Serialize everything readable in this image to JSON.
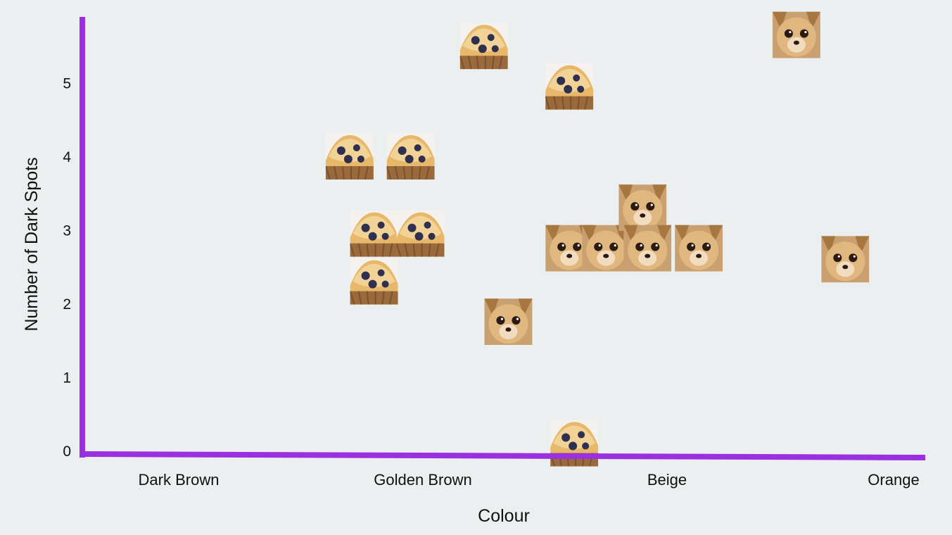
{
  "chart_data": {
    "type": "scatter",
    "title": "",
    "xlabel": "Colour",
    "ylabel": "Number of Dark Spots",
    "categories": [
      "Dark Brown",
      "Golden Brown",
      "Beige",
      "Orange"
    ],
    "y_ticks": [
      "0",
      "1",
      "2",
      "3",
      "4",
      "5"
    ],
    "ylim": [
      0,
      5.6
    ],
    "grid": false,
    "legend": "none",
    "axis_color": "#9b30e0",
    "background": "#eceff0",
    "series": [
      {
        "name": "",
        "marker": "muffin-photo-icon",
        "points": [
          {
            "x": 1.25,
            "y": 5.5
          },
          {
            "x": 1.6,
            "y": 4.95
          },
          {
            "x": 0.7,
            "y": 4.0
          },
          {
            "x": 0.95,
            "y": 4.0
          },
          {
            "x": 0.8,
            "y": 2.95
          },
          {
            "x": 0.99,
            "y": 2.95
          },
          {
            "x": 0.8,
            "y": 2.3
          },
          {
            "x": 1.62,
            "y": 0.1
          }
        ]
      },
      {
        "name": "",
        "marker": "chihuahua-photo-icon",
        "points": [
          {
            "x": 1.35,
            "y": 1.75
          },
          {
            "x": 1.6,
            "y": 2.75
          },
          {
            "x": 1.75,
            "y": 2.75
          },
          {
            "x": 1.9,
            "y": 3.3
          },
          {
            "x": 1.92,
            "y": 2.75
          },
          {
            "x": 2.13,
            "y": 2.75
          },
          {
            "x": 2.53,
            "y": 5.65
          },
          {
            "x": 2.73,
            "y": 2.6
          }
        ]
      }
    ]
  }
}
